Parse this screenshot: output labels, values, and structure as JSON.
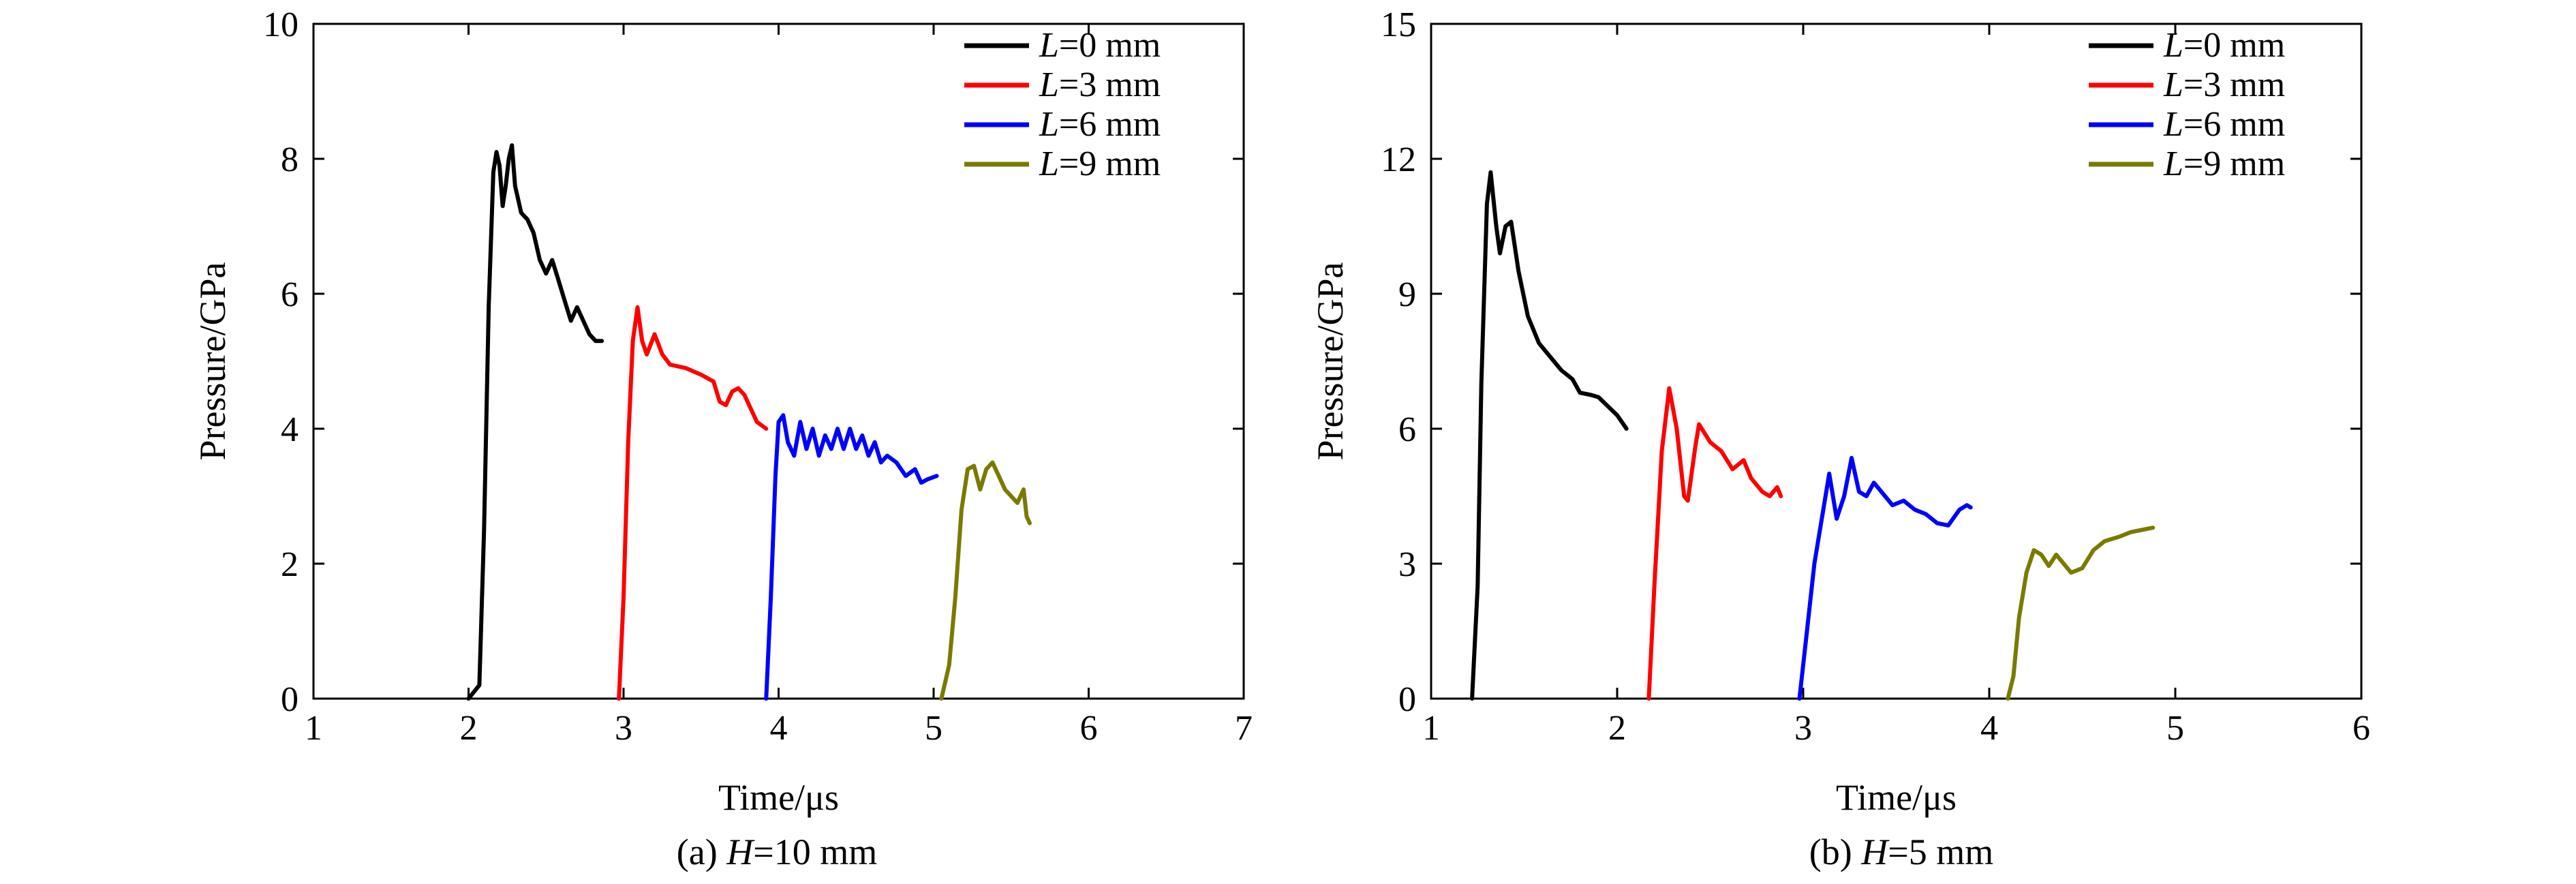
{
  "chart_data": [
    {
      "type": "line",
      "caption_prefix": "(a) ",
      "caption_var": "H",
      "caption_rest": "=10 mm",
      "xlabel": "Time/μs",
      "ylabel": "Pressure/GPa",
      "xlim": [
        1,
        7
      ],
      "ylim": [
        0,
        10
      ],
      "xticks": [
        1,
        2,
        3,
        4,
        5,
        6,
        7
      ],
      "yticks": [
        0,
        2,
        4,
        6,
        8,
        10
      ],
      "legend_position": "top-right",
      "series": [
        {
          "var": "L",
          "name_rest": "=0 mm",
          "color": "#000000",
          "points": [
            [
              2.0,
              0
            ],
            [
              2.07,
              0.2
            ],
            [
              2.1,
              2.5
            ],
            [
              2.13,
              5.8
            ],
            [
              2.16,
              7.8
            ],
            [
              2.18,
              8.1
            ],
            [
              2.2,
              7.9
            ],
            [
              2.22,
              7.3
            ],
            [
              2.24,
              7.6
            ],
            [
              2.26,
              8.0
            ],
            [
              2.28,
              8.2
            ],
            [
              2.3,
              7.6
            ],
            [
              2.34,
              7.2
            ],
            [
              2.38,
              7.1
            ],
            [
              2.42,
              6.9
            ],
            [
              2.46,
              6.5
            ],
            [
              2.5,
              6.3
            ],
            [
              2.54,
              6.5
            ],
            [
              2.58,
              6.2
            ],
            [
              2.62,
              5.9
            ],
            [
              2.66,
              5.6
            ],
            [
              2.7,
              5.8
            ],
            [
              2.74,
              5.6
            ],
            [
              2.78,
              5.4
            ],
            [
              2.82,
              5.3
            ],
            [
              2.86,
              5.3
            ]
          ]
        },
        {
          "var": "L",
          "name_rest": "=3 mm",
          "color": "#ff0000",
          "points": [
            [
              2.97,
              0
            ],
            [
              3.0,
              1.5
            ],
            [
              3.03,
              3.8
            ],
            [
              3.06,
              5.3
            ],
            [
              3.09,
              5.8
            ],
            [
              3.12,
              5.3
            ],
            [
              3.15,
              5.1
            ],
            [
              3.2,
              5.4
            ],
            [
              3.25,
              5.1
            ],
            [
              3.3,
              4.95
            ],
            [
              3.4,
              4.9
            ],
            [
              3.5,
              4.8
            ],
            [
              3.58,
              4.7
            ],
            [
              3.62,
              4.4
            ],
            [
              3.66,
              4.35
            ],
            [
              3.7,
              4.55
            ],
            [
              3.74,
              4.6
            ],
            [
              3.78,
              4.5
            ],
            [
              3.82,
              4.3
            ],
            [
              3.86,
              4.1
            ],
            [
              3.92,
              4.0
            ]
          ]
        },
        {
          "var": "L",
          "name_rest": "=6 mm",
          "color": "#0000ff",
          "points": [
            [
              3.92,
              0
            ],
            [
              3.95,
              1.5
            ],
            [
              3.98,
              3.3
            ],
            [
              4.0,
              4.1
            ],
            [
              4.03,
              4.2
            ],
            [
              4.06,
              3.8
            ],
            [
              4.1,
              3.6
            ],
            [
              4.14,
              4.1
            ],
            [
              4.18,
              3.7
            ],
            [
              4.22,
              4.0
            ],
            [
              4.26,
              3.6
            ],
            [
              4.3,
              3.9
            ],
            [
              4.34,
              3.7
            ],
            [
              4.38,
              4.0
            ],
            [
              4.42,
              3.7
            ],
            [
              4.46,
              4.0
            ],
            [
              4.5,
              3.7
            ],
            [
              4.54,
              3.9
            ],
            [
              4.58,
              3.6
            ],
            [
              4.62,
              3.8
            ],
            [
              4.66,
              3.5
            ],
            [
              4.7,
              3.6
            ],
            [
              4.76,
              3.5
            ],
            [
              4.82,
              3.3
            ],
            [
              4.88,
              3.4
            ],
            [
              4.92,
              3.2
            ],
            [
              4.96,
              3.25
            ],
            [
              5.02,
              3.3
            ]
          ]
        },
        {
          "var": "L",
          "name_rest": "=9 mm",
          "color": "#7a7a00",
          "points": [
            [
              5.05,
              0
            ],
            [
              5.1,
              0.5
            ],
            [
              5.14,
              1.5
            ],
            [
              5.18,
              2.8
            ],
            [
              5.22,
              3.4
            ],
            [
              5.26,
              3.45
            ],
            [
              5.3,
              3.1
            ],
            [
              5.34,
              3.4
            ],
            [
              5.38,
              3.5
            ],
            [
              5.42,
              3.3
            ],
            [
              5.46,
              3.1
            ],
            [
              5.5,
              3.0
            ],
            [
              5.54,
              2.9
            ],
            [
              5.58,
              3.1
            ],
            [
              5.6,
              2.7
            ],
            [
              5.62,
              2.6
            ]
          ]
        }
      ]
    },
    {
      "type": "line",
      "caption_prefix": "(b) ",
      "caption_var": "H",
      "caption_rest": "=5 mm",
      "xlabel": "Time/μs",
      "ylabel": "Pressure/GPa",
      "xlim": [
        1,
        6
      ],
      "ylim": [
        0,
        15
      ],
      "xticks": [
        1,
        2,
        3,
        4,
        5,
        6
      ],
      "yticks": [
        0,
        3,
        6,
        9,
        12,
        15
      ],
      "legend_position": "top-right",
      "series": [
        {
          "var": "L",
          "name_rest": "=0 mm",
          "color": "#000000",
          "points": [
            [
              1.22,
              0
            ],
            [
              1.25,
              2.5
            ],
            [
              1.27,
              7.0
            ],
            [
              1.3,
              11.0
            ],
            [
              1.32,
              11.7
            ],
            [
              1.35,
              10.5
            ],
            [
              1.37,
              9.9
            ],
            [
              1.4,
              10.5
            ],
            [
              1.43,
              10.6
            ],
            [
              1.47,
              9.5
            ],
            [
              1.52,
              8.5
            ],
            [
              1.58,
              7.9
            ],
            [
              1.64,
              7.6
            ],
            [
              1.7,
              7.3
            ],
            [
              1.76,
              7.1
            ],
            [
              1.8,
              6.8
            ],
            [
              1.86,
              6.75
            ],
            [
              1.9,
              6.7
            ],
            [
              1.95,
              6.5
            ],
            [
              2.0,
              6.3
            ],
            [
              2.05,
              6.0
            ]
          ]
        },
        {
          "var": "L",
          "name_rest": "=3 mm",
          "color": "#ff0000",
          "points": [
            [
              2.17,
              0
            ],
            [
              2.2,
              2.5
            ],
            [
              2.24,
              5.5
            ],
            [
              2.28,
              6.9
            ],
            [
              2.32,
              6.0
            ],
            [
              2.36,
              4.5
            ],
            [
              2.38,
              4.4
            ],
            [
              2.42,
              5.6
            ],
            [
              2.44,
              6.1
            ],
            [
              2.5,
              5.7
            ],
            [
              2.56,
              5.5
            ],
            [
              2.62,
              5.1
            ],
            [
              2.68,
              5.3
            ],
            [
              2.72,
              4.9
            ],
            [
              2.78,
              4.6
            ],
            [
              2.82,
              4.5
            ],
            [
              2.86,
              4.7
            ],
            [
              2.88,
              4.5
            ]
          ]
        },
        {
          "var": "L",
          "name_rest": "=6 mm",
          "color": "#0000ff",
          "points": [
            [
              2.98,
              0
            ],
            [
              3.02,
              1.5
            ],
            [
              3.06,
              3.0
            ],
            [
              3.1,
              4.0
            ],
            [
              3.14,
              5.0
            ],
            [
              3.18,
              4.0
            ],
            [
              3.22,
              4.5
            ],
            [
              3.26,
              5.35
            ],
            [
              3.3,
              4.6
            ],
            [
              3.34,
              4.5
            ],
            [
              3.38,
              4.8
            ],
            [
              3.42,
              4.6
            ],
            [
              3.48,
              4.3
            ],
            [
              3.54,
              4.4
            ],
            [
              3.6,
              4.2
            ],
            [
              3.66,
              4.1
            ],
            [
              3.72,
              3.9
            ],
            [
              3.78,
              3.85
            ],
            [
              3.84,
              4.2
            ],
            [
              3.88,
              4.3
            ],
            [
              3.9,
              4.25
            ]
          ]
        },
        {
          "var": "L",
          "name_rest": "=9 mm",
          "color": "#7a7a00",
          "points": [
            [
              4.1,
              0
            ],
            [
              4.13,
              0.5
            ],
            [
              4.16,
              1.8
            ],
            [
              4.2,
              2.8
            ],
            [
              4.24,
              3.3
            ],
            [
              4.28,
              3.2
            ],
            [
              4.32,
              2.95
            ],
            [
              4.36,
              3.2
            ],
            [
              4.4,
              3.0
            ],
            [
              4.44,
              2.8
            ],
            [
              4.5,
              2.9
            ],
            [
              4.56,
              3.3
            ],
            [
              4.62,
              3.5
            ],
            [
              4.7,
              3.6
            ],
            [
              4.76,
              3.7
            ],
            [
              4.82,
              3.75
            ],
            [
              4.88,
              3.8
            ]
          ]
        }
      ]
    }
  ]
}
